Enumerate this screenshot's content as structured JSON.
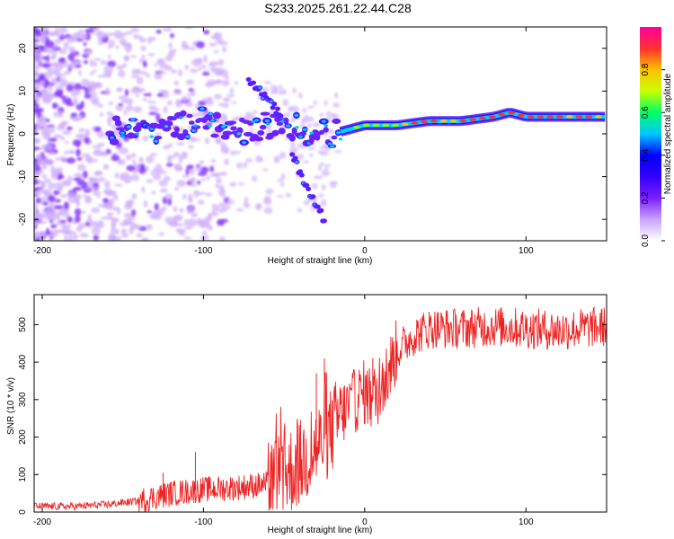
{
  "title": "S233.2025.261.22.44.C28",
  "chart_data": [
    {
      "type": "heatmap",
      "xlabel": "Height of straight line (km)",
      "ylabel": "Frequency (Hz)",
      "xlim": [
        -205,
        150
      ],
      "ylim": [
        -25,
        25
      ],
      "x_ticks": [
        -200,
        -100,
        0,
        100
      ],
      "y_ticks": [
        -20,
        -10,
        0,
        10,
        20
      ],
      "colorbar": {
        "label": "Normalized spectral amplitude",
        "range": [
          0,
          1
        ],
        "ticks": [
          "0.0",
          "0.2",
          "0.4",
          "0.6",
          "0.8"
        ],
        "colors": [
          "#ffffff",
          "#c9a3ff",
          "#7a1fff",
          "#3300ff",
          "#0000ff",
          "#00c8ff",
          "#00ff66",
          "#c8ff00",
          "#ffc000",
          "#ff3030",
          "#ff00a0"
        ]
      },
      "ridge": {
        "x": [
          -155,
          -140,
          -130,
          -115,
          -100,
          -90,
          -80,
          -70,
          -60,
          -50,
          -40,
          -30,
          -20,
          -10,
          0,
          10,
          20,
          40,
          60,
          80,
          90,
          100,
          110,
          120,
          150
        ],
        "y": [
          1,
          1.5,
          1,
          2,
          3,
          2,
          0,
          1,
          2,
          3,
          1,
          0,
          0,
          1,
          2,
          2,
          2,
          3,
          3,
          4,
          5,
          4,
          4,
          4,
          4
        ]
      },
      "branches": [
        {
          "x": [
            -72,
            -65,
            -58,
            -52
          ],
          "y": [
            13,
            10,
            7,
            4
          ]
        },
        {
          "x": [
            -45,
            -40,
            -35,
            -30,
            -25
          ],
          "y": [
            -5,
            -9,
            -13,
            -17,
            -20
          ]
        }
      ]
    },
    {
      "type": "line",
      "xlabel": "Height of straight line (km)",
      "ylabel": "SNR (10 * v/v)",
      "xlim": [
        -205,
        150
      ],
      "ylim": [
        0,
        580
      ],
      "x_ticks": [
        -200,
        -100,
        0,
        100
      ],
      "y_ticks": [
        0,
        100,
        200,
        300,
        400,
        500
      ],
      "series": [
        {
          "name": "SNR",
          "color": "#ee2222",
          "envelope": {
            "x": [
              -205,
              -180,
              -160,
              -140,
              -120,
              -100,
              -80,
              -60,
              -50,
              -40,
              -30,
              -20,
              -15,
              -10,
              0,
              5,
              10,
              20,
              30,
              40,
              60,
              80,
              100,
              120,
              150
            ],
            "y": [
              15,
              15,
              20,
              30,
              50,
              60,
              65,
              75,
              100,
              130,
              170,
              220,
              260,
              280,
              320,
              300,
              330,
              430,
              470,
              490,
              490,
              495,
              490,
              485,
              495
            ]
          },
          "spikes": [
            {
              "x": -125,
              "y": 105
            },
            {
              "x": -105,
              "y": 160
            },
            {
              "x": -30,
              "y": 370
            },
            {
              "x": -25,
              "y": 410
            },
            {
              "x": -20,
              "y": 30
            },
            {
              "x": 5,
              "y": 410
            },
            {
              "x": 5,
              "y": 185
            }
          ]
        }
      ]
    }
  ]
}
